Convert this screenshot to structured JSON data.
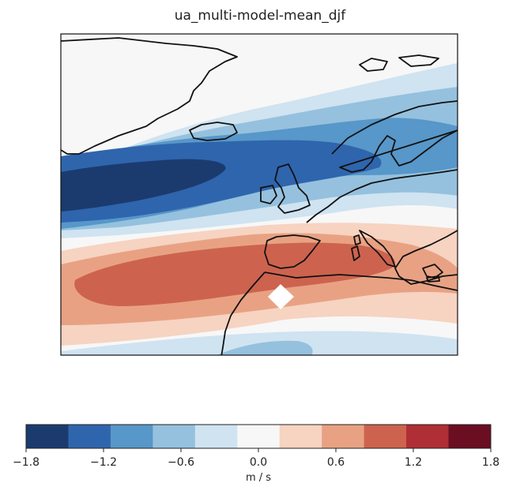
{
  "title": "ua_multi-model-mean_djf",
  "colorbar": {
    "unit": "m / s",
    "range": [
      -1.8,
      1.8
    ],
    "ticks": [
      "−1.8",
      "−1.2",
      "−0.6",
      "0.0",
      "0.6",
      "1.2",
      "1.8"
    ],
    "tick_values": [
      -1.8,
      -1.2,
      -0.6,
      0.0,
      0.6,
      1.2,
      1.8
    ],
    "levels": 12,
    "colors": [
      "#1b3b6f",
      "#2f65ad",
      "#5797c9",
      "#95c1de",
      "#cfe3f1",
      "#f7f7f7",
      "#f7d3c1",
      "#e8a283",
      "#cd634e",
      "#b02e35",
      "#6b0e22"
    ]
  },
  "map": {
    "region": "North Atlantic and Europe",
    "variable": "ua",
    "season": "djf",
    "features": [
      "coastlines",
      "contour-fill"
    ]
  }
}
